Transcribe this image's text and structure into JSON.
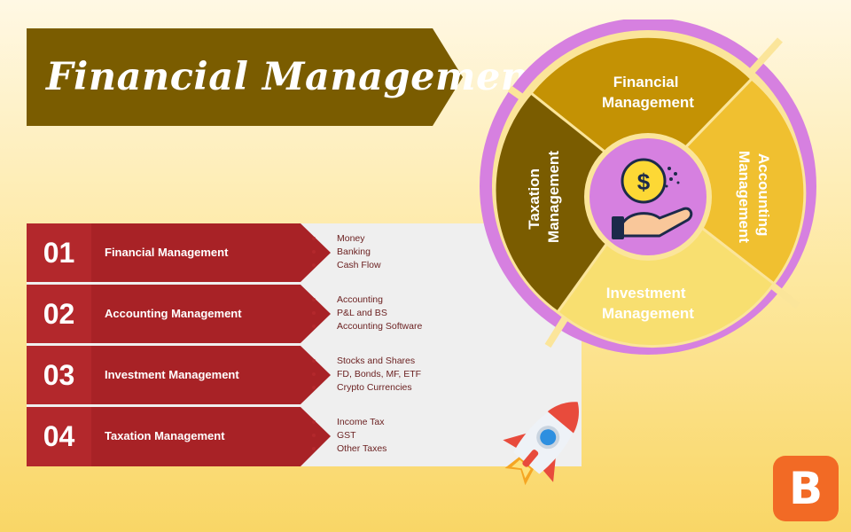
{
  "title": "Financial Management",
  "rows": [
    {
      "number": "01",
      "label": "Financial Management",
      "items": [
        "Money",
        "Banking",
        "Cash Flow"
      ]
    },
    {
      "number": "02",
      "label": "Accounting Management",
      "items": [
        "Accounting",
        "P&L and BS",
        "Accounting Software"
      ]
    },
    {
      "number": "03",
      "label": "Investment Management",
      "items": [
        "Stocks and Shares",
        "FD, Bonds, MF, ETF",
        "Crypto Currencies"
      ]
    },
    {
      "number": "04",
      "label": "Taxation Management",
      "items": [
        "Income Tax",
        "GST",
        "Other Taxes"
      ]
    }
  ],
  "wheel": {
    "segments": [
      {
        "line1": "Financial",
        "line2": "Management",
        "color": "#c49204"
      },
      {
        "line1": "Accounting",
        "line2": "Management",
        "color": "#f0c030"
      },
      {
        "line1": "Investment",
        "line2": "Management",
        "color": "#f8df70"
      },
      {
        "line1": "Taxation",
        "line2": "Management",
        "color": "#7a5c00"
      }
    ],
    "center_icon": "money-hand-icon",
    "ring_color": "#d680e0"
  },
  "rocket_icon": "rocket-icon",
  "logo_letter": "B",
  "colors": {
    "banner": "#7a5c00",
    "row_red": "#b3282c",
    "panel_gray": "#efefef",
    "logo_orange": "#f26a25"
  }
}
